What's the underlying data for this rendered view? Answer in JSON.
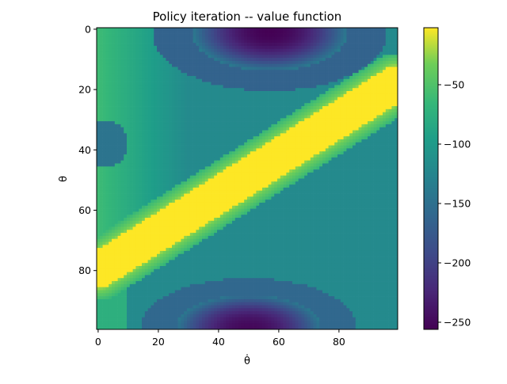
{
  "chart_data": {
    "type": "heatmap",
    "title": "Policy iteration -- value function",
    "xlabel": "θ̇",
    "ylabel": "θ",
    "x_range": [
      0,
      99
    ],
    "y_range": [
      0,
      99
    ],
    "y_inverted": true,
    "x_ticks": [
      0,
      20,
      40,
      60,
      80
    ],
    "y_ticks": [
      0,
      20,
      40,
      60,
      80
    ],
    "colorbar": {
      "colormap": "viridis",
      "range": [
        -256,
        -2
      ],
      "ticks": [
        -50,
        -100,
        -150,
        -200,
        -250
      ],
      "tick_labels": [
        "−50",
        "−100",
        "−150",
        "−200",
        "−250"
      ]
    },
    "features": {
      "ridge": {
        "description_value_max": -2,
        "from": [
          0,
          80
        ],
        "to": [
          99,
          18
        ],
        "half_width": 6
      },
      "low_value_top": {
        "center": [
          57,
          1
        ],
        "value_min": -256
      },
      "low_value_bottom": {
        "center": [
          50,
          98
        ],
        "value_min": -250
      },
      "left_green_region": {
        "x_range": [
          0,
          25
        ],
        "y_range": [
          15,
          90
        ],
        "value_approx": -60
      }
    },
    "grid": false,
    "colors": {
      "viridis_low": "#440154",
      "viridis_mid": "#21918c",
      "viridis_high": "#fde725"
    }
  }
}
